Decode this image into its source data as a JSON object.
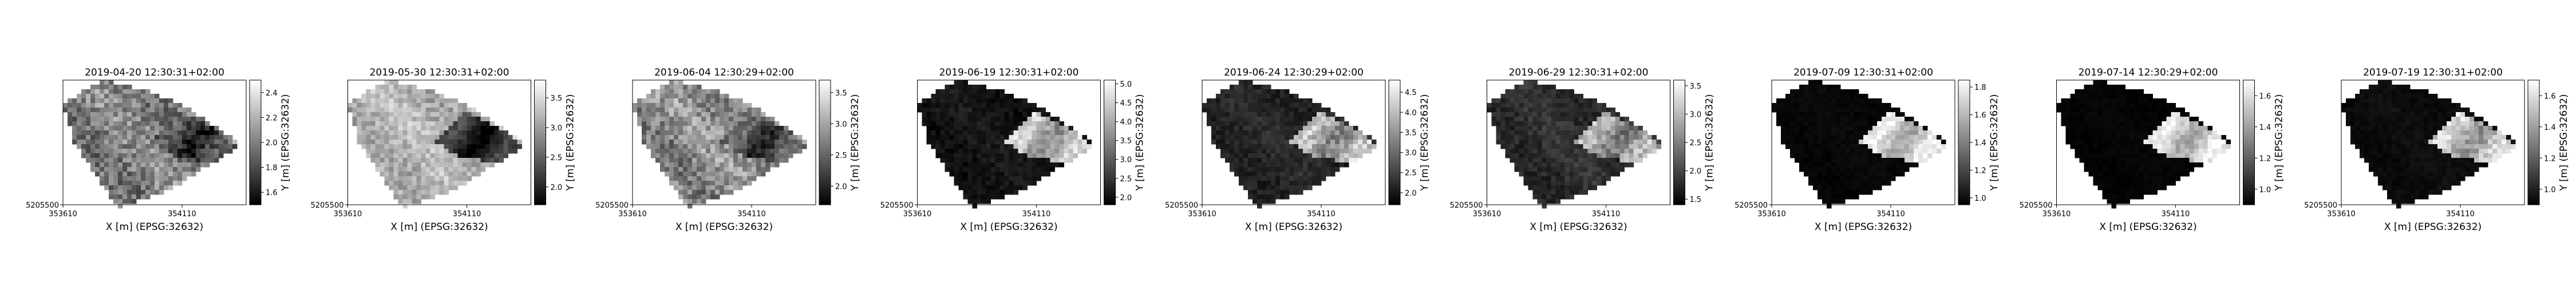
{
  "figure": {
    "background": "#ffffff",
    "colormap": "gray",
    "xlabel": "X [m] (EPSG:32632)",
    "ylabel": "Y [m] (EPSG:32632)"
  },
  "chart_data": [
    {
      "type": "heatmap",
      "title": "2019-04-20 12:30:31+02:00",
      "xlabel": "X [m] (EPSG:32632)",
      "ylabel": "Y [m] (EPSG:32632)",
      "x_ticks": [
        "353610",
        "354110"
      ],
      "y_ticks": [
        "5205500"
      ],
      "colorbar_ticks": [
        "1.6",
        "1.8",
        "2.0",
        "2.2",
        "2.4"
      ],
      "colorbar_range": [
        1.5,
        2.5
      ],
      "legend": "none",
      "grid": false
    },
    {
      "type": "heatmap",
      "title": "2019-05-30 12:30:31+02:00",
      "xlabel": "X [m] (EPSG:32632)",
      "ylabel": "Y [m] (EPSG:32632)",
      "x_ticks": [
        "353610",
        "354110"
      ],
      "y_ticks": [
        "5205500"
      ],
      "colorbar_ticks": [
        "2.0",
        "2.5",
        "3.0",
        "3.5"
      ],
      "colorbar_range": [
        1.7,
        3.8
      ],
      "legend": "none",
      "grid": false
    },
    {
      "type": "heatmap",
      "title": "2019-06-04 12:30:29+02:00",
      "xlabel": "X [m] (EPSG:32632)",
      "ylabel": "Y [m] (EPSG:32632)",
      "x_ticks": [
        "353610",
        "354110"
      ],
      "y_ticks": [
        "5205500"
      ],
      "colorbar_ticks": [
        "2.0",
        "2.5",
        "3.0",
        "3.5"
      ],
      "colorbar_range": [
        1.7,
        3.7
      ],
      "legend": "none",
      "grid": false
    },
    {
      "type": "heatmap",
      "title": "2019-06-19 12:30:31+02:00",
      "xlabel": "X [m] (EPSG:32632)",
      "ylabel": "Y [m] (EPSG:32632)",
      "x_ticks": [
        "353610",
        "354110"
      ],
      "y_ticks": [
        "5205500"
      ],
      "colorbar_ticks": [
        "2.0",
        "2.5",
        "3.0",
        "3.5",
        "4.0",
        "4.5",
        "5.0"
      ],
      "colorbar_range": [
        1.8,
        5.1
      ],
      "legend": "none",
      "grid": false
    },
    {
      "type": "heatmap",
      "title": "2019-06-24 12:30:29+02:00",
      "xlabel": "X [m] (EPSG:32632)",
      "ylabel": "Y [m] (EPSG:32632)",
      "x_ticks": [
        "353610",
        "354110"
      ],
      "y_ticks": [
        "5205500"
      ],
      "colorbar_ticks": [
        "2.0",
        "2.5",
        "3.0",
        "3.5",
        "4.0",
        "4.5"
      ],
      "colorbar_range": [
        1.7,
        4.8
      ],
      "legend": "none",
      "grid": false
    },
    {
      "type": "heatmap",
      "title": "2019-06-29 12:30:31+02:00",
      "xlabel": "X [m] (EPSG:32632)",
      "ylabel": "Y [m] (EPSG:32632)",
      "x_ticks": [
        "353610",
        "354110"
      ],
      "y_ticks": [
        "5205500"
      ],
      "colorbar_ticks": [
        "1.5",
        "2.0",
        "2.5",
        "3.0",
        "3.5"
      ],
      "colorbar_range": [
        1.4,
        3.6
      ],
      "legend": "none",
      "grid": false
    },
    {
      "type": "heatmap",
      "title": "2019-07-09 12:30:31+02:00",
      "xlabel": "X [m] (EPSG:32632)",
      "ylabel": "Y [m] (EPSG:32632)",
      "x_ticks": [
        "353610",
        "354110"
      ],
      "y_ticks": [
        "5205500"
      ],
      "colorbar_ticks": [
        "1.0",
        "1.2",
        "1.4",
        "1.6",
        "1.8"
      ],
      "colorbar_range": [
        0.95,
        1.85
      ],
      "legend": "none",
      "grid": false
    },
    {
      "type": "heatmap",
      "title": "2019-07-14 12:30:29+02:00",
      "xlabel": "X [m] (EPSG:32632)",
      "ylabel": "Y [m] (EPSG:32632)",
      "x_ticks": [
        "353610",
        "354110"
      ],
      "y_ticks": [
        "5205500"
      ],
      "colorbar_ticks": [
        "1.0",
        "1.2",
        "1.4",
        "1.6"
      ],
      "colorbar_range": [
        0.9,
        1.7
      ],
      "legend": "none",
      "grid": false
    },
    {
      "type": "heatmap",
      "title": "2019-07-19 12:30:31+02:00",
      "xlabel": "X [m] (EPSG:32632)",
      "ylabel": "Y [m] (EPSG:32632)",
      "x_ticks": [
        "353610",
        "354110"
      ],
      "y_ticks": [
        "5205500"
      ],
      "colorbar_ticks": [
        "1.0",
        "1.2",
        "1.4",
        "1.6"
      ],
      "colorbar_range": [
        0.9,
        1.7
      ],
      "legend": "none",
      "grid": false
    }
  ]
}
